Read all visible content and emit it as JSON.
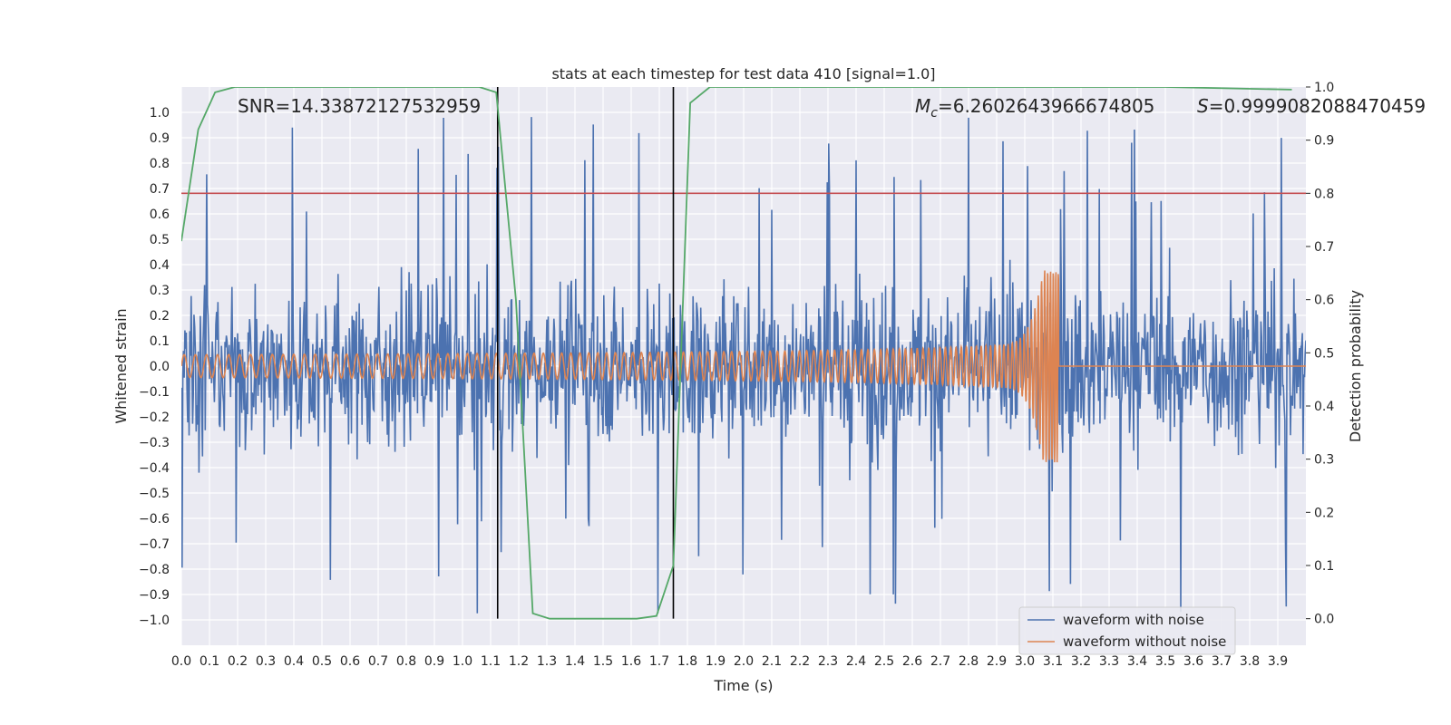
{
  "chart_data": {
    "type": "line",
    "title": "stats at each timestep for test data 410 [signal=1.0]",
    "xlabel": "Time (s)",
    "ylabel_left": "Whitened strain",
    "ylabel_right": "Detection probability",
    "xlim": [
      0.0,
      4.0
    ],
    "ylim_left": [
      -1.1,
      1.1
    ],
    "ylim_right": [
      -0.05,
      1.0
    ],
    "grid": true,
    "x_ticks": [
      "0.0",
      "0.1",
      "0.2",
      "0.3",
      "0.4",
      "0.5",
      "0.6",
      "0.7",
      "0.8",
      "0.9",
      "1.0",
      "1.1",
      "1.2",
      "1.3",
      "1.4",
      "1.5",
      "1.6",
      "1.7",
      "1.8",
      "1.9",
      "2.0",
      "2.1",
      "2.2",
      "2.3",
      "2.4",
      "2.5",
      "2.6",
      "2.7",
      "2.8",
      "2.9",
      "3.0",
      "3.1",
      "3.2",
      "3.3",
      "3.4",
      "3.5",
      "3.6",
      "3.7",
      "3.8",
      "3.9"
    ],
    "y_ticks_left": [
      "−1.0",
      "−0.9",
      "−0.8",
      "−0.7",
      "−0.6",
      "−0.5",
      "−0.4",
      "−0.3",
      "−0.2",
      "−0.1",
      "0.0",
      "0.1",
      "0.2",
      "0.3",
      "0.4",
      "0.5",
      "0.6",
      "0.7",
      "0.8",
      "0.9",
      "1.0"
    ],
    "y_ticks_right": [
      "0.0",
      "0.1",
      "0.2",
      "0.3",
      "0.4",
      "0.5",
      "0.6",
      "0.7",
      "0.8",
      "0.9",
      "1.0"
    ],
    "annotations": {
      "snr": "SNR=14.33872127532959",
      "mc_symbol": "M",
      "mc_sub": "c",
      "mc_value": "=6.2602643966674805",
      "s_symbol": "S",
      "s_value": "=0.9999082088470459"
    },
    "legend": {
      "placement": "lower right",
      "entries": [
        "waveform with noise",
        "waveform without noise"
      ]
    },
    "threshold": {
      "value": 0.8,
      "axis": "right",
      "color": "#c44e52"
    },
    "vertical_markers": [
      1.125,
      1.75
    ],
    "series": [
      {
        "name": "waveform with noise",
        "axis": "left",
        "color": "#4c72b0",
        "description_values": {
          "approx_amplitude": 0.5,
          "peak_max": 1.0,
          "peak_min": -1.0
        }
      },
      {
        "name": "waveform without noise",
        "axis": "left",
        "color": "#dd8452",
        "chirp": {
          "start_amplitude": 0.045,
          "peak_amplitude": 0.38,
          "merger_time": 3.12,
          "start_frequency_hz": 25
        }
      },
      {
        "name": "detection probability",
        "axis": "right",
        "color": "#55a868",
        "x": [
          0.0,
          0.06,
          0.12,
          0.19,
          0.25,
          0.31,
          0.38,
          0.44,
          0.5,
          0.56,
          0.62,
          0.69,
          0.75,
          0.81,
          0.88,
          0.94,
          1.0,
          1.06,
          1.12,
          1.19,
          1.25,
          1.31,
          1.38,
          1.44,
          1.5,
          1.56,
          1.62,
          1.69,
          1.75,
          1.81,
          1.88,
          1.94,
          2.0,
          2.5,
          3.0,
          3.5,
          3.95
        ],
        "y": [
          0.71,
          0.92,
          0.99,
          1.0,
          1.0,
          1.0,
          1.0,
          1.0,
          1.0,
          1.0,
          1.0,
          1.0,
          1.0,
          1.0,
          1.0,
          1.0,
          1.0,
          1.0,
          0.99,
          0.6,
          0.01,
          0.0,
          0.0,
          0.0,
          0.0,
          0.0,
          0.0,
          0.005,
          0.1,
          0.97,
          1.0,
          1.0,
          1.0,
          1.0,
          1.0,
          1.0,
          0.995
        ]
      }
    ]
  }
}
